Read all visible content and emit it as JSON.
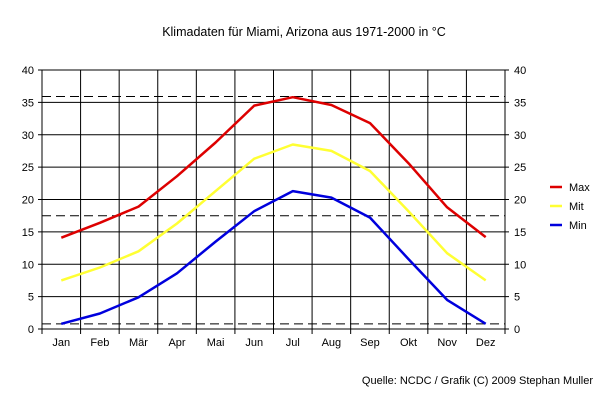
{
  "chart_data": {
    "type": "line",
    "title": "Klimadaten für Miami, Arizona aus 1971-2000 in °C",
    "categories": [
      "Jan",
      "Feb",
      "Mär",
      "Apr",
      "Mai",
      "Jun",
      "Jul",
      "Aug",
      "Sep",
      "Okt",
      "Nov",
      "Dez"
    ],
    "ylim": [
      0,
      40
    ],
    "yticks": [
      0,
      5,
      10,
      15,
      20,
      25,
      30,
      35,
      40
    ],
    "grid": true,
    "legend_position": "right",
    "series": [
      {
        "name": "Max",
        "color": "#dd0000",
        "values": [
          14.1,
          16.4,
          18.9,
          23.6,
          28.8,
          34.5,
          35.8,
          34.6,
          31.8,
          25.6,
          18.8,
          14.2
        ]
      },
      {
        "name": "Mit",
        "color": "#ffff33",
        "values": [
          7.5,
          9.5,
          12.0,
          16.3,
          21.3,
          26.3,
          28.5,
          27.5,
          24.4,
          18.2,
          11.7,
          7.5
        ]
      },
      {
        "name": "Min",
        "color": "#0000dd",
        "values": [
          0.8,
          2.4,
          4.9,
          8.6,
          13.5,
          18.2,
          21.3,
          20.3,
          17.2,
          10.8,
          4.5,
          0.8
        ]
      }
    ],
    "reference_lines": [
      35.9,
      17.5,
      0.8
    ],
    "source": "Quelle: NCDC / Grafik (C) 2009 Stephan Muller"
  }
}
